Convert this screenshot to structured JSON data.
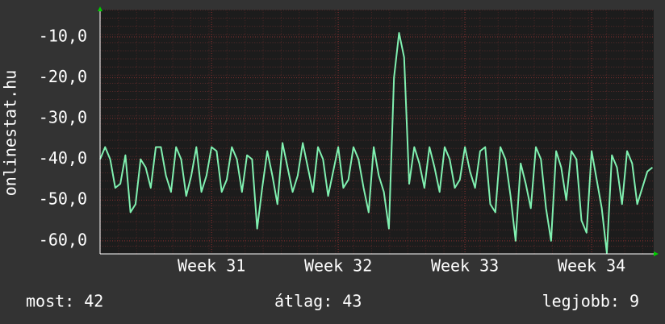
{
  "chart_data": {
    "type": "line",
    "y_label": "onlinestat.hu",
    "x": [
      30.12,
      30.16,
      30.2,
      30.24,
      30.28,
      30.32,
      30.36,
      30.4,
      30.44,
      30.48,
      30.52,
      30.56,
      30.6,
      30.64,
      30.68,
      30.72,
      30.76,
      30.8,
      30.84,
      30.88,
      30.92,
      30.96,
      31,
      31.04,
      31.08,
      31.12,
      31.16,
      31.2,
      31.24,
      31.28,
      31.32,
      31.36,
      31.4,
      31.44,
      31.48,
      31.52,
      31.56,
      31.6,
      31.64,
      31.68,
      31.72,
      31.76,
      31.8,
      31.84,
      31.88,
      31.92,
      31.96,
      32,
      32.04,
      32.08,
      32.12,
      32.16,
      32.2,
      32.24,
      32.28,
      32.32,
      32.36,
      32.4,
      32.44,
      32.48,
      32.52,
      32.56,
      32.6,
      32.64,
      32.68,
      32.72,
      32.76,
      32.8,
      32.84,
      32.88,
      32.92,
      32.96,
      33,
      33.04,
      33.08,
      33.12,
      33.16,
      33.2,
      33.24,
      33.28,
      33.32,
      33.36,
      33.4,
      33.44,
      33.48,
      33.52,
      33.56,
      33.6,
      33.64,
      33.68,
      33.72,
      33.76,
      33.8,
      33.84,
      33.88,
      33.92,
      33.96,
      34,
      34.04,
      34.08,
      34.12,
      34.16,
      34.2,
      34.24,
      34.28,
      34.32,
      34.36,
      34.4,
      34.44,
      34.48
    ],
    "series": [
      {
        "color": "#80f0b0",
        "values": [
          -40,
          -37,
          -40,
          -47,
          -46,
          -39,
          -53,
          -51,
          -40,
          -42,
          -47,
          -37,
          -37,
          -44,
          -48,
          -37,
          -40,
          -49,
          -44,
          -37,
          -48,
          -44,
          -37,
          -38,
          -48,
          -45,
          -37,
          -40,
          -48,
          -39,
          -40,
          -57,
          -47,
          -38,
          -44,
          -51,
          -36,
          -42,
          -48,
          -44,
          -36,
          -42,
          -48,
          -37,
          -40,
          -49,
          -43,
          -37,
          -47,
          -45,
          -37,
          -40,
          -47,
          -53,
          -37,
          -44,
          -48,
          -57,
          -20,
          -9,
          -15,
          -46,
          -37,
          -41,
          -47,
          -37,
          -42,
          -48,
          -37,
          -40,
          -47,
          -45,
          -37,
          -43,
          -47,
          -38,
          -37,
          -51,
          -53,
          -37,
          -40,
          -49,
          -60,
          -41,
          -46,
          -52,
          -37,
          -40,
          -52,
          -60,
          -38,
          -42,
          -50,
          -38,
          -40,
          -55,
          -58,
          -38,
          -45,
          -52,
          -63,
          -39,
          -42,
          -51,
          -38,
          -41,
          -51,
          -47,
          -43,
          -42
        ]
      }
    ],
    "xlim": [
      30.12,
      34.49
    ],
    "xticks": [
      {
        "value": 31,
        "label": "Week 31"
      },
      {
        "value": 32,
        "label": "Week 32"
      },
      {
        "value": 33,
        "label": "Week 33"
      },
      {
        "value": 34,
        "label": "Week 34"
      }
    ],
    "ylim": [
      -63.2,
      -3.3
    ],
    "yticks": [
      {
        "value": -10,
        "label": "-10,0"
      },
      {
        "value": -20,
        "label": "-20,0"
      },
      {
        "value": -30,
        "label": "-30,0"
      },
      {
        "value": -40,
        "label": "-40,0"
      },
      {
        "value": -50,
        "label": "-50,0"
      },
      {
        "value": -60,
        "label": "-60,0"
      }
    ],
    "grid": true,
    "footer": [
      "most: 42",
      "átlag: 43",
      "legjobb: 9"
    ]
  }
}
